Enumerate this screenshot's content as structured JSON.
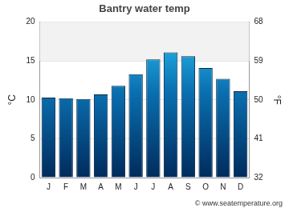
{
  "chart_data": {
    "type": "bar",
    "title": "Bantry water temp",
    "categories": [
      "J",
      "F",
      "M",
      "A",
      "M",
      "J",
      "J",
      "A",
      "S",
      "O",
      "N",
      "D"
    ],
    "values": [
      10.3,
      10.2,
      10.1,
      10.7,
      11.8,
      13.3,
      15.2,
      16.1,
      15.6,
      14.1,
      12.7,
      11.1
    ],
    "color": "#29c5f6",
    "y_label": "°C",
    "y2_label": "°F",
    "ylim": [
      0,
      20
    ],
    "yticks": [
      0,
      5,
      10,
      15,
      20
    ],
    "y2lim": [
      32,
      68
    ],
    "y2ticks": [
      32,
      41,
      50,
      59,
      68
    ],
    "grid": true,
    "annotations": [
      "© www.seatemperature.org"
    ]
  }
}
